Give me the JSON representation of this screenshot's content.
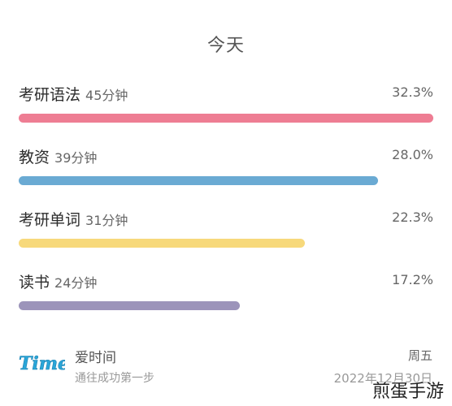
{
  "header": {
    "title": "今天"
  },
  "items": [
    {
      "name": "考研语法",
      "duration": "45分钟",
      "percent": "32.3%",
      "fraction": 1.0,
      "color": "#ee7d93"
    },
    {
      "name": "教资",
      "duration": "39分钟",
      "percent": "28.0%",
      "fraction": 0.867,
      "color": "#6aaad3"
    },
    {
      "name": "考研单词",
      "duration": "31分钟",
      "percent": "22.3%",
      "fraction": 0.69,
      "color": "#f7d97b"
    },
    {
      "name": "读书",
      "duration": "24分钟",
      "percent": "17.2%",
      "fraction": 0.533,
      "color": "#9c94ba"
    }
  ],
  "footer": {
    "logo_text": "Time",
    "app_name": "爱时间",
    "slogan": "通往成功第一步",
    "weekday": "周五",
    "date": "2022年12月30日"
  },
  "watermark": "煎蛋手游"
}
